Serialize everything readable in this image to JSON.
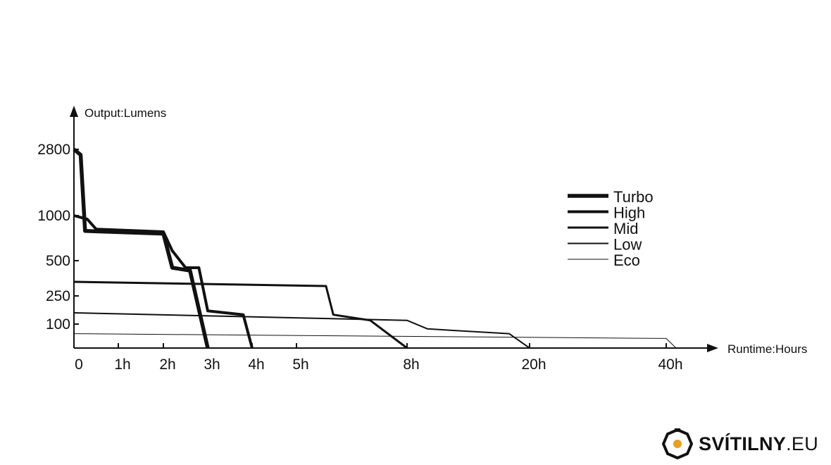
{
  "chart_data": {
    "type": "line",
    "ylabel": "Output:Lumens",
    "xlabel": "Runtime:Hours",
    "y_ticks": [
      "2800",
      "1000",
      "500",
      "250",
      "100"
    ],
    "x_ticks": [
      "0",
      "1h",
      "2h",
      "3h",
      "4h",
      "5h",
      "8h",
      "20h",
      "40h"
    ],
    "series": [
      {
        "name": "Turbo",
        "x": [
          "0",
          "0.15h",
          "0.25h",
          "2h",
          "2.2h",
          "2.6h",
          "3h"
        ],
        "y": [
          2800,
          2650,
          830,
          800,
          450,
          430,
          0
        ]
      },
      {
        "name": "High",
        "x": [
          "0",
          "0.3h",
          "0.5h",
          "2h",
          "2.2h",
          "2.5h",
          "2.8h",
          "3h",
          "3.8h",
          "4h"
        ],
        "y": [
          1000,
          960,
          850,
          820,
          610,
          450,
          450,
          170,
          150,
          0
        ]
      },
      {
        "name": "Mid",
        "x": [
          "0",
          "5.8h",
          "6h",
          "7h",
          "8h"
        ],
        "y": [
          350,
          320,
          150,
          120,
          0
        ]
      },
      {
        "name": "Low",
        "x": [
          "0",
          "8h",
          "10h",
          "18h",
          "20h"
        ],
        "y": [
          160,
          120,
          80,
          60,
          0
        ]
      },
      {
        "name": "Eco",
        "x": [
          "0",
          "40h",
          "42h"
        ],
        "y": [
          60,
          40,
          0
        ]
      }
    ]
  },
  "colors": {
    "line": "#111111",
    "background": "#ffffff",
    "brand_accent": "#e8a020"
  },
  "brand": {
    "bold": "SVÍTILNY",
    "thin": ".EU",
    "icon": "flashlight-logo-icon"
  }
}
